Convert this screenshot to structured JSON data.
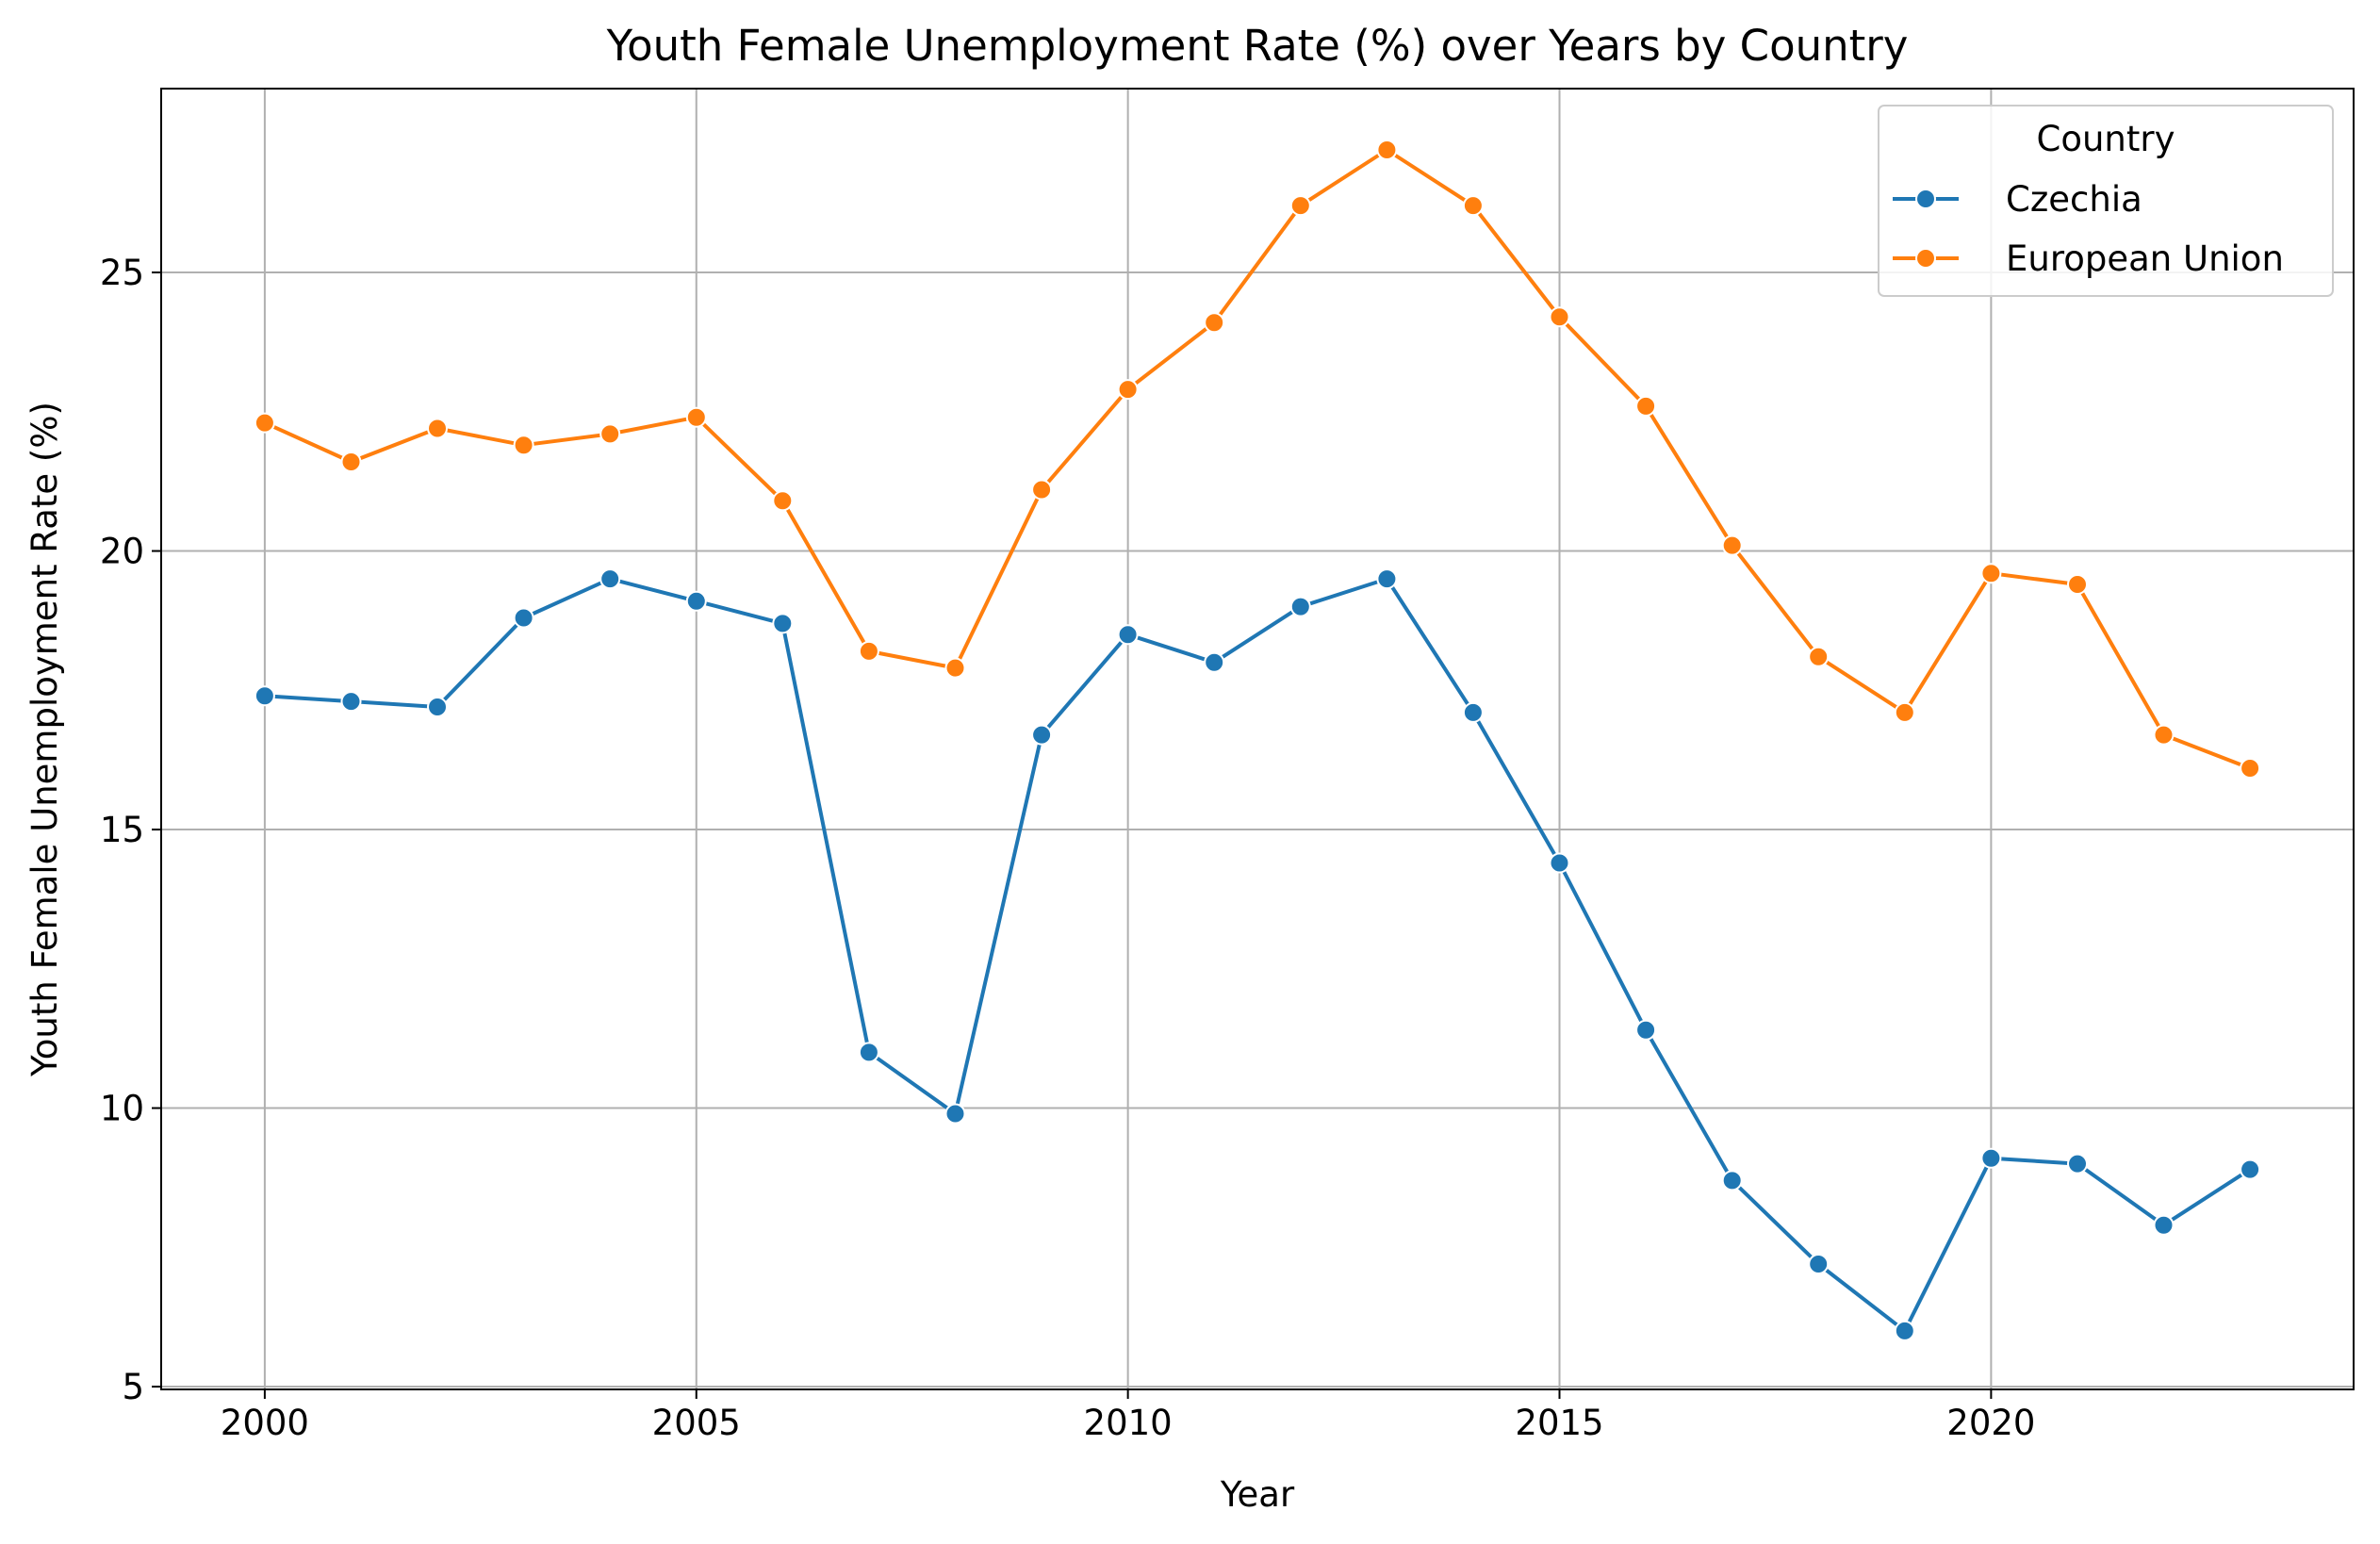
{
  "chart_data": {
    "type": "line",
    "title": "Youth Female Unemployment Rate (%) over Years by Country",
    "xlabel": "Year",
    "ylabel": "Youth Female Unemployment Rate (%)",
    "xlim": [
      1998.8,
      2024.2
    ],
    "ylim": [
      4.95,
      28.3
    ],
    "xticks": [
      2000,
      2005,
      2010,
      2015,
      2020
    ],
    "yticks": [
      5,
      10,
      15,
      20,
      25
    ],
    "grid": true,
    "legend": {
      "title": "Country",
      "position": "top-right"
    },
    "x": [
      2000,
      2001,
      2002,
      2003,
      2004,
      2005,
      2006,
      2007,
      2008,
      2009,
      2010,
      2011,
      2012,
      2013,
      2014,
      2015,
      2016,
      2017,
      2018,
      2019,
      2020,
      2021,
      2022,
      2023
    ],
    "series": [
      {
        "name": "Czechia",
        "color": "#1f77b4",
        "marker": "circle",
        "values": [
          17.4,
          17.3,
          17.2,
          18.8,
          19.5,
          19.1,
          18.7,
          11.0,
          9.9,
          16.7,
          18.5,
          18.0,
          19.0,
          19.5,
          17.1,
          14.4,
          11.4,
          8.7,
          7.2,
          6.0,
          9.1,
          9.0,
          7.9,
          8.9
        ]
      },
      {
        "name": "European Union",
        "color": "#ff7f0e",
        "marker": "circle",
        "values": [
          22.3,
          21.6,
          22.2,
          21.9,
          22.1,
          22.4,
          20.9,
          18.2,
          17.9,
          21.1,
          22.9,
          24.1,
          26.2,
          27.2,
          26.2,
          24.2,
          22.6,
          20.1,
          18.1,
          17.1,
          19.6,
          19.4,
          16.7,
          16.1
        ]
      }
    ]
  }
}
